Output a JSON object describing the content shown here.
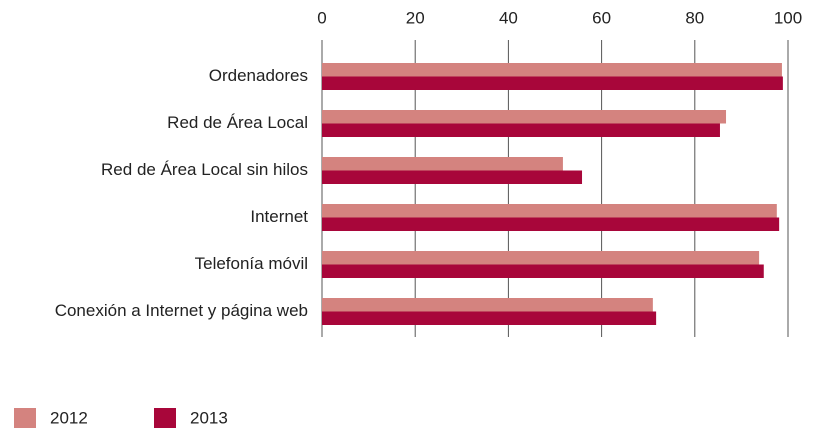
{
  "chart_data": {
    "type": "hbar",
    "categories": [
      "Ordenadores",
      "Red de Área Local",
      "Red de Área Local sin hilos",
      "Internet",
      "Telefonía móvil",
      "Conexión a Internet y página web"
    ],
    "series": [
      {
        "name": "2012",
        "color": "#d4837f",
        "values": [
          98.7,
          86.7,
          51.7,
          97.6,
          93.8,
          71.0
        ]
      },
      {
        "name": "2013",
        "color": "#a8063a",
        "values": [
          98.9,
          85.4,
          55.8,
          98.1,
          94.8,
          71.7
        ]
      }
    ],
    "xlim": [
      0,
      100
    ],
    "xticks": [
      0,
      20,
      40,
      60,
      80,
      100
    ],
    "grid": true
  }
}
